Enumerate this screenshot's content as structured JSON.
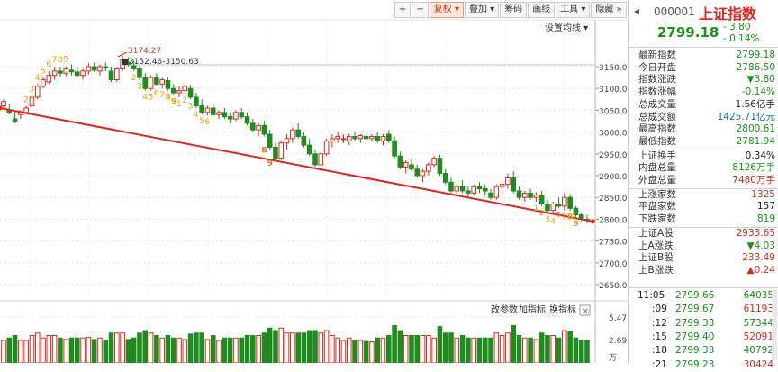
{
  "toolbar": {
    "plus": "+",
    "minus": "−",
    "adjust": "复权",
    "overlay": "叠加",
    "chips": "筹码",
    "draw": "画线",
    "tools": "工具",
    "hide": "隐藏",
    "collapse": "»"
  },
  "chart": {
    "ma_setting": "设置均线",
    "high_label": "3174.27",
    "range_label": "3152.46-3150.63",
    "price_ticks": [
      "3150.00",
      "3100.00",
      "3050.00",
      "3000.00",
      "2950.00",
      "2900.00",
      "2850.00",
      "2800.00",
      "2750.00",
      "2700.00",
      "2650.00"
    ],
    "vol_ticks": [
      "5.47",
      "2.69"
    ],
    "vol_unit": "万",
    "change_params": "改参数",
    "add_indicator": "加指标",
    "switch_indicator": "换指标",
    "nine_top": [
      "2",
      "3",
      "4",
      "5",
      "6",
      "7",
      "8",
      "9"
    ],
    "nine_mid": [
      "2",
      "3",
      "4",
      "5",
      "6",
      "7",
      "8",
      "9",
      "1",
      "2",
      "3",
      "4",
      "5",
      "6"
    ],
    "nine_a": [
      "8",
      "9"
    ],
    "nine_end": [
      "1",
      "2",
      "3",
      "4",
      "5",
      "7",
      "8",
      "9"
    ],
    "colors": {
      "up": "#e1261c",
      "down": "#1e8c1e",
      "trend": "#e0261c",
      "nine_orange": "#f0a000"
    }
  },
  "header": {
    "code": "000001",
    "name": "上证指数",
    "price": "2799.18",
    "change": "- 3.80",
    "change_pct": "- 0.14%"
  },
  "stats1": [
    {
      "k": "最新指数",
      "v": "2799.18",
      "c": "green"
    },
    {
      "k": "今日开盘",
      "v": "2786.50",
      "c": "green"
    },
    {
      "k": "指数涨跌",
      "v": "▼3.80",
      "c": "green"
    },
    {
      "k": "指数涨幅",
      "v": "-0.14%",
      "c": "green"
    },
    {
      "k": "总成交量",
      "v": "1.56亿手",
      "c": "black"
    },
    {
      "k": "总成交额",
      "v": "1425.71亿元",
      "c": "blue"
    },
    {
      "k": "最高指数",
      "v": "2800.61",
      "c": "green"
    },
    {
      "k": "最低指数",
      "v": "2781.94",
      "c": "green"
    }
  ],
  "stats2": [
    {
      "k": "上证换手",
      "v": "0.34%",
      "c": "black"
    },
    {
      "k": "内盘总量",
      "v": "8126万手",
      "c": "green"
    },
    {
      "k": "外盘总量",
      "v": "7480万手",
      "c": "red"
    }
  ],
  "stats3": [
    {
      "k": "上涨家数",
      "v": "1325",
      "c": "red"
    },
    {
      "k": "平盘家数",
      "v": "157",
      "c": "black"
    },
    {
      "k": "下跌家数",
      "v": "819",
      "c": "green"
    }
  ],
  "stats4": [
    {
      "k": "上证A股",
      "v": "2933.65",
      "c": "red"
    },
    {
      "k": "上A涨跌",
      "v": "▼4.03",
      "c": "green"
    },
    {
      "k": "上证B股",
      "v": "233.49",
      "c": "red"
    },
    {
      "k": "上B涨跌",
      "v": "▲0.24",
      "c": "red"
    }
  ],
  "ticks": [
    {
      "t": "11:05",
      "p": "2799.66",
      "v": "64035"
    },
    {
      "t": ":09",
      "p": "2799.67",
      "v": "61193"
    },
    {
      "t": ":12",
      "p": "2799.33",
      "v": "57344"
    },
    {
      "t": ":15",
      "p": "2799.40",
      "v": "52091"
    },
    {
      "t": ":18",
      "p": "2799.33",
      "v": "40792"
    },
    {
      "t": ":21",
      "p": "2799.23",
      "v": "30424"
    }
  ],
  "chart_data": {
    "type": "candlestick",
    "y_range": [
      2630,
      3210
    ],
    "ohlc": [
      [
        3060,
        3075,
        3055,
        3070
      ],
      [
        3050,
        3065,
        3040,
        3045
      ],
      [
        3030,
        3050,
        3020,
        3025
      ],
      [
        3040,
        3050,
        3030,
        3045
      ],
      [
        3045,
        3060,
        3040,
        3055
      ],
      [
        3060,
        3085,
        3055,
        3080
      ],
      [
        3080,
        3110,
        3075,
        3105
      ],
      [
        3105,
        3125,
        3100,
        3120
      ],
      [
        3115,
        3140,
        3110,
        3130
      ],
      [
        3130,
        3150,
        3120,
        3140
      ],
      [
        3140,
        3150,
        3125,
        3135
      ],
      [
        3135,
        3150,
        3128,
        3145
      ],
      [
        3142,
        3155,
        3130,
        3138
      ],
      [
        3138,
        3150,
        3125,
        3130
      ],
      [
        3130,
        3145,
        3120,
        3140
      ],
      [
        3140,
        3158,
        3132,
        3150
      ],
      [
        3150,
        3160,
        3138,
        3142
      ],
      [
        3140,
        3155,
        3130,
        3150
      ],
      [
        3150,
        3160,
        3140,
        3148
      ],
      [
        3140,
        3150,
        3115,
        3120
      ],
      [
        3120,
        3150,
        3115,
        3145
      ],
      [
        3145,
        3175,
        3140,
        3165
      ],
      [
        3160,
        3172,
        3150,
        3155
      ],
      [
        3152,
        3165,
        3140,
        3145
      ],
      [
        3145,
        3155,
        3120,
        3125
      ],
      [
        3125,
        3135,
        3095,
        3100
      ],
      [
        3100,
        3130,
        3095,
        3125
      ],
      [
        3125,
        3135,
        3105,
        3110
      ],
      [
        3110,
        3125,
        3100,
        3120
      ],
      [
        3118,
        3125,
        3095,
        3100
      ],
      [
        3100,
        3110,
        3085,
        3090
      ],
      [
        3090,
        3105,
        3080,
        3095
      ],
      [
        3095,
        3110,
        3088,
        3105
      ],
      [
        3100,
        3108,
        3075,
        3080
      ],
      [
        3080,
        3090,
        3055,
        3060
      ],
      [
        3060,
        3075,
        3040,
        3045
      ],
      [
        3045,
        3060,
        3038,
        3055
      ],
      [
        3055,
        3065,
        3035,
        3040
      ],
      [
        3040,
        3050,
        3030,
        3045
      ],
      [
        3045,
        3055,
        3030,
        3035
      ],
      [
        3035,
        3045,
        3020,
        3030
      ],
      [
        3030,
        3050,
        3025,
        3045
      ],
      [
        3045,
        3055,
        3030,
        3035
      ],
      [
        3035,
        3045,
        3015,
        3020
      ],
      [
        3020,
        3030,
        3000,
        3005
      ],
      [
        3005,
        3020,
        2990,
        3015
      ],
      [
        3015,
        3025,
        2990,
        2995
      ],
      [
        2995,
        3005,
        2960,
        2965
      ],
      [
        2965,
        2975,
        2935,
        2940
      ],
      [
        2940,
        2980,
        2935,
        2975
      ],
      [
        2975,
        2995,
        2960,
        2985
      ],
      [
        2985,
        3010,
        2975,
        3005
      ],
      [
        3005,
        3020,
        2985,
        2990
      ],
      [
        2990,
        3000,
        2965,
        2970
      ],
      [
        2970,
        2985,
        2945,
        2950
      ],
      [
        2950,
        2960,
        2920,
        2925
      ],
      [
        2925,
        2955,
        2920,
        2950
      ],
      [
        2950,
        2985,
        2945,
        2980
      ],
      [
        2980,
        2995,
        2965,
        2985
      ],
      [
        2985,
        3000,
        2975,
        2990
      ],
      [
        2985,
        2995,
        2975,
        2985
      ],
      [
        2980,
        2995,
        2970,
        2990
      ],
      [
        2990,
        3000,
        2980,
        2985
      ],
      [
        2985,
        2995,
        2975,
        2992
      ],
      [
        2990,
        2998,
        2980,
        2985
      ],
      [
        2985,
        2995,
        2978,
        2990
      ],
      [
        2990,
        3000,
        2975,
        2980
      ],
      [
        2980,
        2995,
        2970,
        2990
      ],
      [
        2995,
        3005,
        2975,
        2980
      ],
      [
        2980,
        2990,
        2940,
        2945
      ],
      [
        2945,
        2955,
        2915,
        2920
      ],
      [
        2920,
        2935,
        2905,
        2930
      ],
      [
        2925,
        2940,
        2910,
        2915
      ],
      [
        2915,
        2925,
        2895,
        2900
      ],
      [
        2900,
        2915,
        2885,
        2910
      ],
      [
        2910,
        2930,
        2900,
        2925
      ],
      [
        2925,
        2945,
        2920,
        2940
      ],
      [
        2940,
        2948,
        2900,
        2905
      ],
      [
        2905,
        2915,
        2880,
        2885
      ],
      [
        2885,
        2895,
        2860,
        2865
      ],
      [
        2865,
        2880,
        2855,
        2875
      ],
      [
        2875,
        2890,
        2860,
        2865
      ],
      [
        2865,
        2875,
        2850,
        2860
      ],
      [
        2860,
        2880,
        2855,
        2875
      ],
      [
        2875,
        2885,
        2860,
        2870
      ],
      [
        2870,
        2880,
        2855,
        2865
      ],
      [
        2860,
        2870,
        2845,
        2850
      ],
      [
        2850,
        2880,
        2845,
        2875
      ],
      [
        2875,
        2890,
        2860,
        2880
      ],
      [
        2880,
        2905,
        2870,
        2895
      ],
      [
        2895,
        2910,
        2860,
        2865
      ],
      [
        2865,
        2875,
        2845,
        2850
      ],
      [
        2850,
        2865,
        2840,
        2860
      ],
      [
        2860,
        2870,
        2845,
        2850
      ],
      [
        2850,
        2862,
        2840,
        2855
      ],
      [
        2855,
        2865,
        2830,
        2835
      ],
      [
        2835,
        2845,
        2815,
        2820
      ],
      [
        2820,
        2840,
        2810,
        2835
      ],
      [
        2835,
        2850,
        2825,
        2830
      ],
      [
        2830,
        2860,
        2820,
        2850
      ],
      [
        2850,
        2858,
        2820,
        2825
      ],
      [
        2825,
        2830,
        2805,
        2810
      ],
      [
        2810,
        2815,
        2795,
        2800
      ],
      [
        2800,
        2810,
        2790,
        2799
      ]
    ],
    "trendline": {
      "from": [
        0,
        3055
      ],
      "to": [
        104,
        2795
      ]
    }
  }
}
